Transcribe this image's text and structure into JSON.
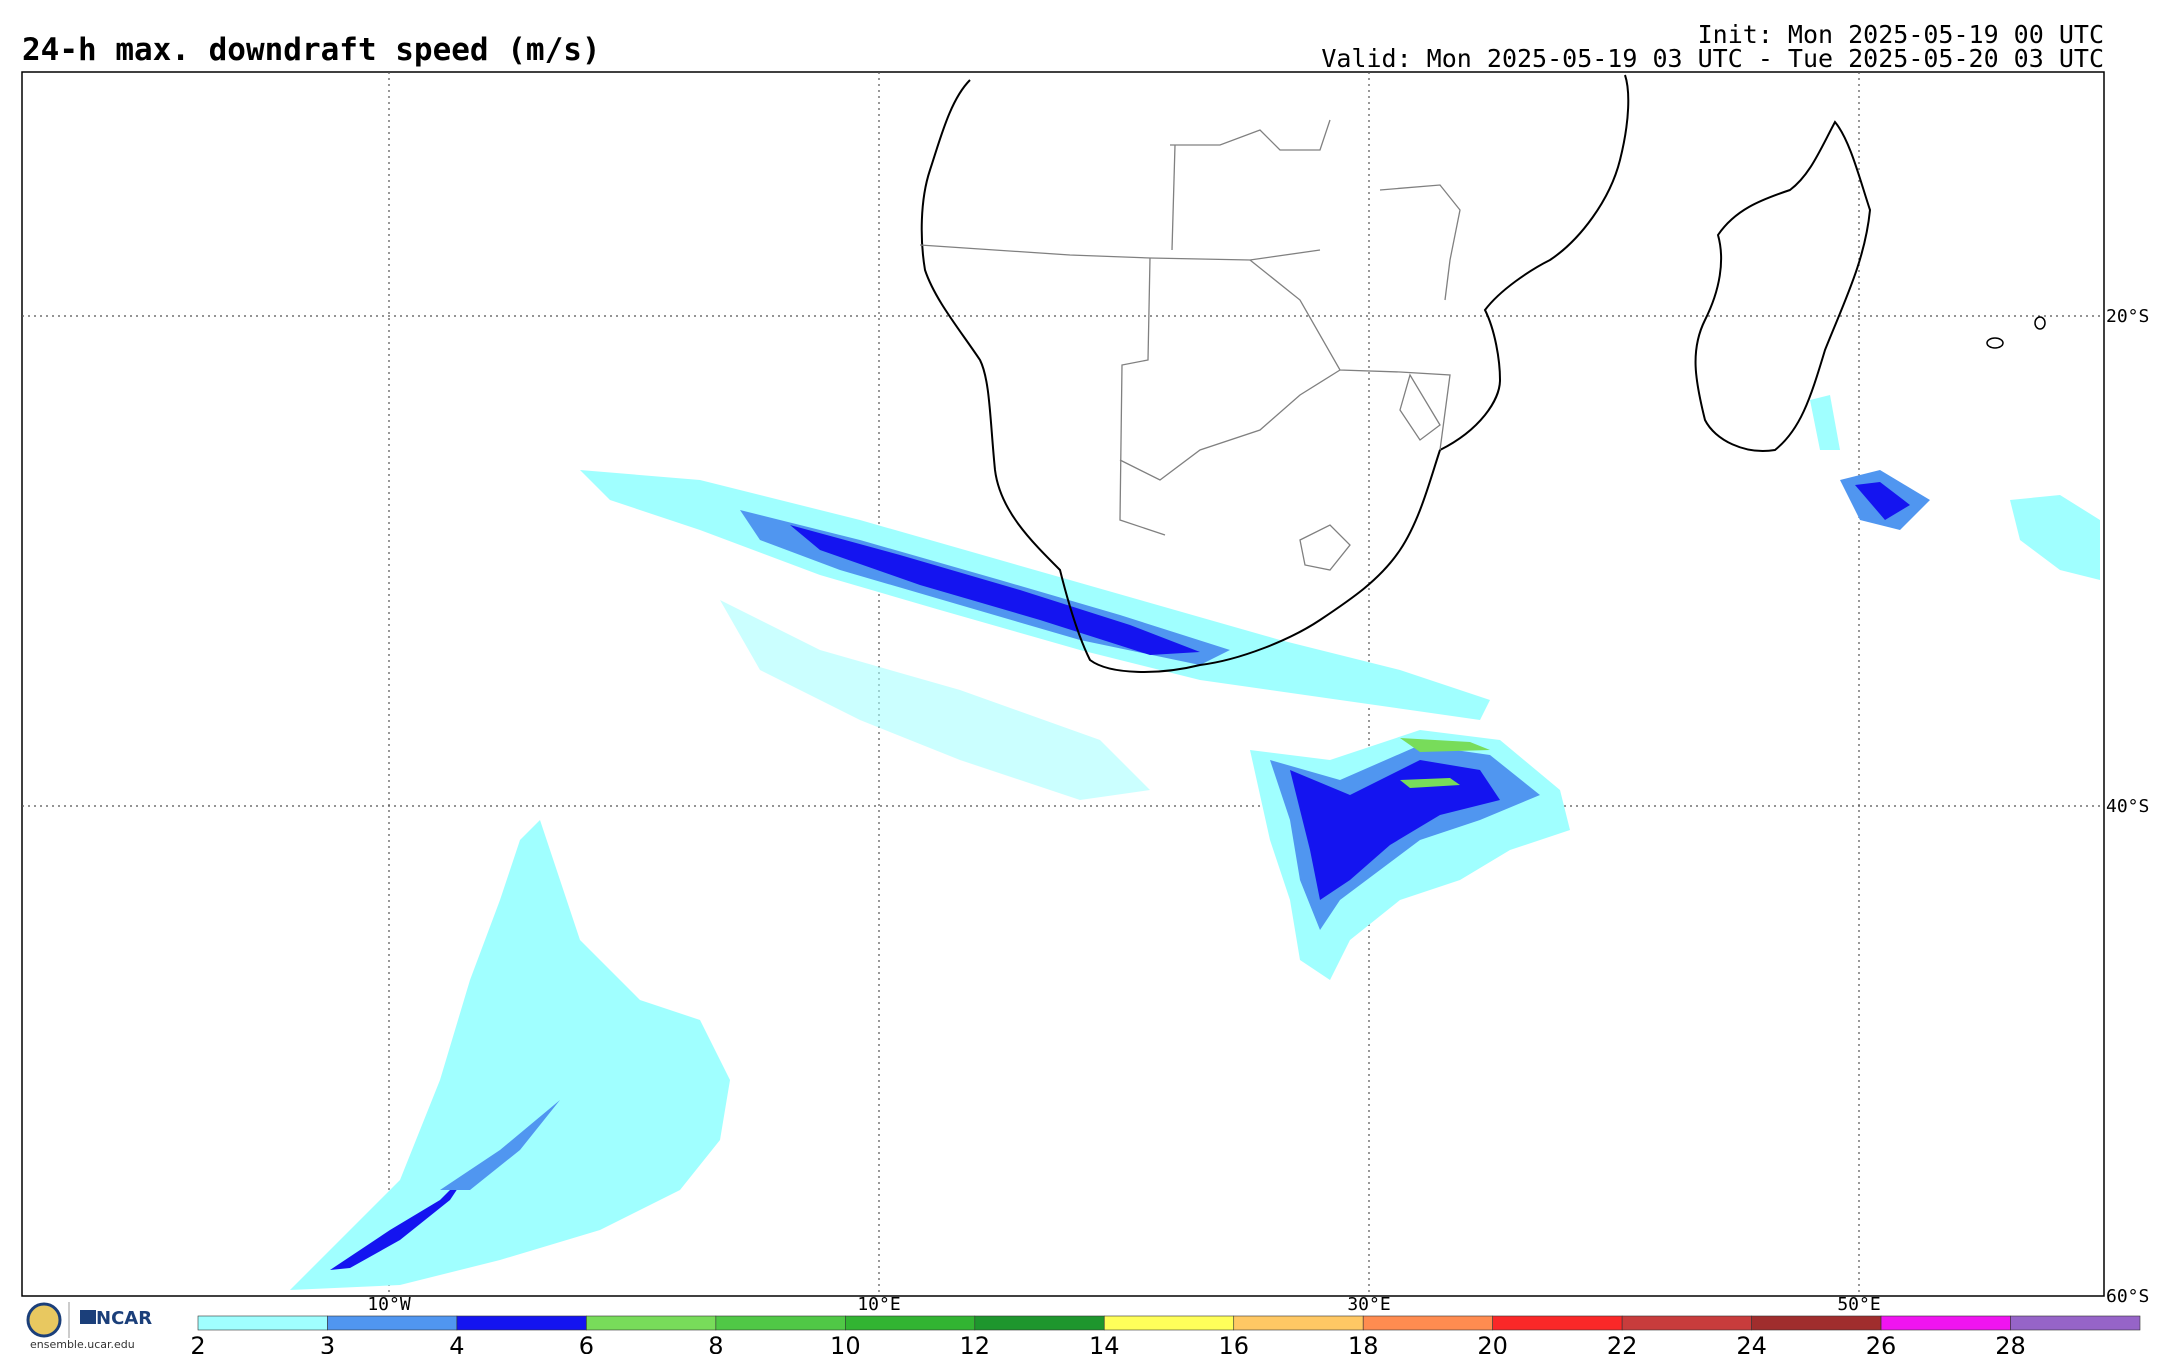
{
  "header": {
    "title": "24-h max. downdraft speed (m/s)",
    "init": "Init: Mon 2025-05-19 00 UTC",
    "valid": "Valid: Mon 2025-05-19 03 UTC - Tue 2025-05-20 03 UTC"
  },
  "map": {
    "lon_labels": [
      "10°W",
      "10°E",
      "30°E",
      "50°E"
    ],
    "lat_labels": [
      "20°S",
      "40°S",
      "60°S"
    ],
    "colors": {
      "ocean": "#ffffff",
      "coast": "#000000",
      "border": "#808080",
      "grid": "#555555"
    }
  },
  "colorbar": {
    "ticks": [
      "2",
      "3",
      "4",
      "6",
      "8",
      "10",
      "12",
      "14",
      "16",
      "18",
      "20",
      "22",
      "24",
      "26",
      "28"
    ],
    "colors": [
      "#a0ffff",
      "#5096f0",
      "#1414f0",
      "#78dc5a",
      "#50c846",
      "#32b432",
      "#1e962d",
      "#ffff5a",
      "#ffc864",
      "#ff8c50",
      "#fa2828",
      "#c83c3c",
      "#a02d2d",
      "#f014f0",
      "#9664c8"
    ]
  },
  "logo": {
    "org": "NCAR",
    "url": "ensemble.ucar.edu"
  }
}
